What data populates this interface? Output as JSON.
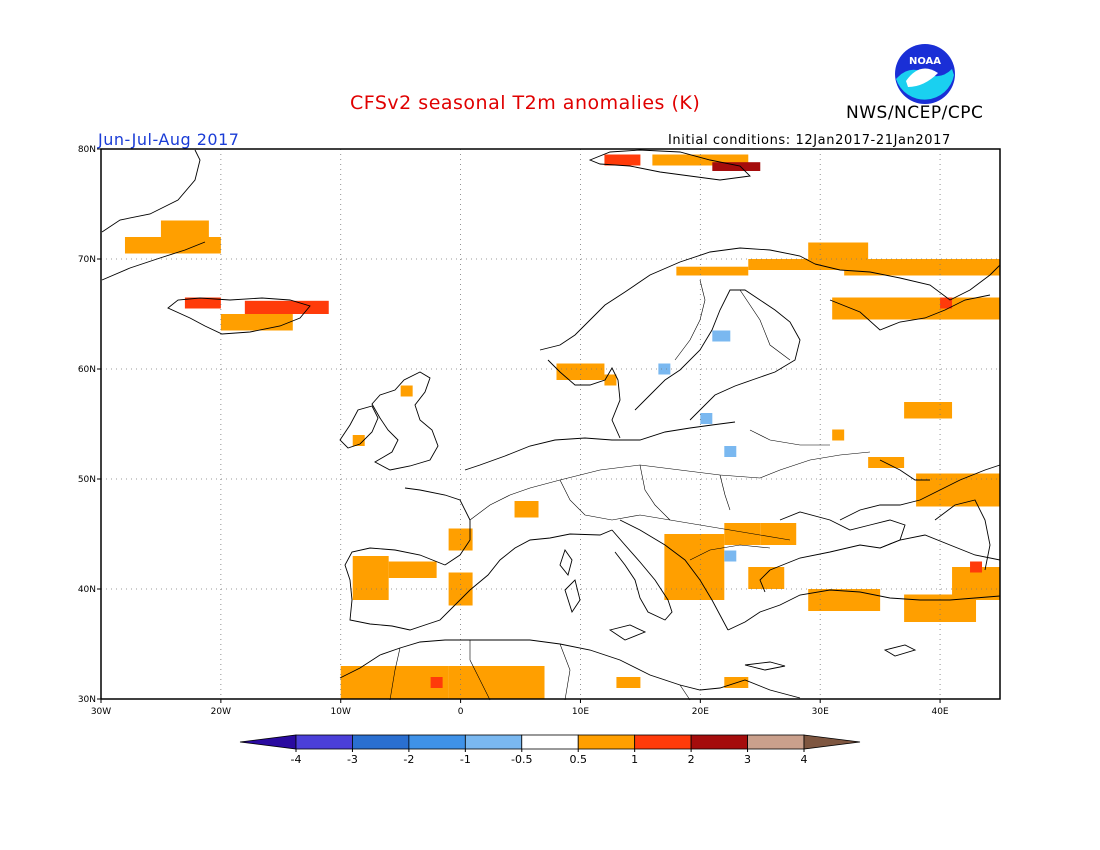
{
  "title": "CFSv2 seasonal T2m anomalies (K)",
  "org": "NWS/NCEP/CPC",
  "logo_text": "NOAA",
  "period": "Jun-Jul-Aug 2017",
  "initial_conditions": "Initial conditions: 12Jan2017-21Jan2017",
  "map": {
    "lon_range": [
      -30,
      45
    ],
    "lat_range": [
      30,
      80
    ],
    "lon_labels": [
      {
        "lon": -30,
        "label": "30W"
      },
      {
        "lon": -20,
        "label": "20W"
      },
      {
        "lon": -10,
        "label": "10W"
      },
      {
        "lon": 0,
        "label": "0"
      },
      {
        "lon": 10,
        "label": "10E"
      },
      {
        "lon": 20,
        "label": "20E"
      },
      {
        "lon": 30,
        "label": "30E"
      },
      {
        "lon": 40,
        "label": "40E"
      }
    ],
    "lat_labels": [
      {
        "lat": 30,
        "label": "30N"
      },
      {
        "lat": 40,
        "label": "40N"
      },
      {
        "lat": 50,
        "label": "50N"
      },
      {
        "lat": 60,
        "label": "60N"
      },
      {
        "lat": 70,
        "label": "70N"
      },
      {
        "lat": 80,
        "label": "80N"
      }
    ],
    "grid": true,
    "anomaly_cells": [
      {
        "lon": -28,
        "lat": 70.5,
        "w": 8,
        "h": 1.5,
        "cls": "0.5-1"
      },
      {
        "lon": -25,
        "lat": 72,
        "w": 4,
        "h": 1.5,
        "cls": "0.5-1"
      },
      {
        "lon": -23,
        "lat": 65.5,
        "w": 3,
        "h": 1,
        "cls": "1-2"
      },
      {
        "lon": -18,
        "lat": 65,
        "w": 7,
        "h": 1.2,
        "cls": "1-2"
      },
      {
        "lon": -20,
        "lat": 63.5,
        "w": 6,
        "h": 1.5,
        "cls": "0.5-1"
      },
      {
        "lon": 12,
        "lat": 78.5,
        "w": 3,
        "h": 1,
        "cls": "1-2"
      },
      {
        "lon": 16,
        "lat": 78.5,
        "w": 8,
        "h": 1,
        "cls": "0.5-1"
      },
      {
        "lon": 21,
        "lat": 78,
        "w": 4,
        "h": 0.8,
        "cls": "2-3"
      },
      {
        "lon": 18,
        "lat": 68.5,
        "w": 6,
        "h": 0.8,
        "cls": "0.5-1"
      },
      {
        "lon": 24,
        "lat": 69,
        "w": 12,
        "h": 1,
        "cls": "0.5-1"
      },
      {
        "lon": 29,
        "lat": 70,
        "w": 5,
        "h": 1.5,
        "cls": "0.5-1"
      },
      {
        "lon": 32,
        "lat": 68.5,
        "w": 13,
        "h": 1.5,
        "cls": "0.5-1"
      },
      {
        "lon": 31,
        "lat": 64.5,
        "w": 14,
        "h": 2,
        "cls": "0.5-1"
      },
      {
        "lon": 40,
        "lat": 65.5,
        "w": 1,
        "h": 1,
        "cls": "1-2"
      },
      {
        "lon": 8,
        "lat": 59,
        "w": 4,
        "h": 1.5,
        "cls": "0.5-1"
      },
      {
        "lon": 12,
        "lat": 58.5,
        "w": 1,
        "h": 1,
        "cls": "0.5-1"
      },
      {
        "lon": -5,
        "lat": 57.5,
        "w": 1,
        "h": 1,
        "cls": "0.5-1"
      },
      {
        "lon": -9,
        "lat": 53,
        "w": 1,
        "h": 1,
        "cls": "0.5-1"
      },
      {
        "lon": 37,
        "lat": 55.5,
        "w": 4,
        "h": 1.5,
        "cls": "0.5-1"
      },
      {
        "lon": 31,
        "lat": 53.5,
        "w": 1,
        "h": 1,
        "cls": "0.5-1"
      },
      {
        "lon": 34,
        "lat": 51,
        "w": 3,
        "h": 1,
        "cls": "0.5-1"
      },
      {
        "lon": 38,
        "lat": 47.5,
        "w": 7,
        "h": 3,
        "cls": "0.5-1"
      },
      {
        "lon": 4.5,
        "lat": 46.5,
        "w": 2,
        "h": 1.5,
        "cls": "0.5-1"
      },
      {
        "lon": -1,
        "lat": 43.5,
        "w": 2,
        "h": 2,
        "cls": "0.5-1"
      },
      {
        "lon": -9,
        "lat": 39,
        "w": 3,
        "h": 4,
        "cls": "0.5-1"
      },
      {
        "lon": -6,
        "lat": 41,
        "w": 4,
        "h": 1.5,
        "cls": "0.5-1"
      },
      {
        "lon": -1,
        "lat": 38.5,
        "w": 2,
        "h": 3,
        "cls": "0.5-1"
      },
      {
        "lon": 17,
        "lat": 39,
        "w": 5,
        "h": 6,
        "cls": "0.5-1"
      },
      {
        "lon": 22,
        "lat": 44,
        "w": 3,
        "h": 2,
        "cls": "0.5-1"
      },
      {
        "lon": 25,
        "lat": 44,
        "w": 3,
        "h": 2,
        "cls": "0.5-1"
      },
      {
        "lon": 24,
        "lat": 40,
        "w": 3,
        "h": 2,
        "cls": "0.5-1"
      },
      {
        "lon": 29,
        "lat": 38,
        "w": 6,
        "h": 2,
        "cls": "0.5-1"
      },
      {
        "lon": 37,
        "lat": 37,
        "w": 6,
        "h": 2.5,
        "cls": "0.5-1"
      },
      {
        "lon": 41,
        "lat": 39,
        "w": 4,
        "h": 3,
        "cls": "0.5-1"
      },
      {
        "lon": 42.5,
        "lat": 41.5,
        "w": 1,
        "h": 1,
        "cls": "1-2"
      },
      {
        "lon": -10,
        "lat": 30,
        "w": 9,
        "h": 3,
        "cls": "0.5-1"
      },
      {
        "lon": -1,
        "lat": 30,
        "w": 8,
        "h": 3,
        "cls": "0.5-1"
      },
      {
        "lon": 2,
        "lat": 31.5,
        "w": 5,
        "h": 1.5,
        "cls": "0.5-1"
      },
      {
        "lon": -2.5,
        "lat": 31,
        "w": 1,
        "h": 1,
        "cls": "1-2"
      },
      {
        "lon": 22,
        "lat": 31,
        "w": 2,
        "h": 1,
        "cls": "0.5-1"
      },
      {
        "lon": 13,
        "lat": 31,
        "w": 2,
        "h": 1,
        "cls": "0.5-1"
      },
      {
        "lon": 16.5,
        "lat": 59.5,
        "w": 1,
        "h": 1,
        "cls": "-1--0.5"
      },
      {
        "lon": 21,
        "lat": 62.5,
        "w": 1.5,
        "h": 1,
        "cls": "-1--0.5"
      },
      {
        "lon": 20,
        "lat": 55,
        "w": 1,
        "h": 1,
        "cls": "-1--0.5"
      },
      {
        "lon": 22,
        "lat": 52,
        "w": 1,
        "h": 1,
        "cls": "-1--0.5"
      },
      {
        "lon": 22,
        "lat": 42.5,
        "w": 1,
        "h": 1,
        "cls": "-1--0.5"
      }
    ]
  },
  "colorbar": {
    "labels": [
      "-4",
      "-3",
      "-2",
      "-1",
      "-0.5",
      "0.5",
      "1",
      "2",
      "3",
      "4"
    ],
    "colors": [
      "#2a0aa0",
      "#4b3fd8",
      "#2a6fd0",
      "#3f92e8",
      "#7ab8f0",
      "#ffffff",
      "#ff9f00",
      "#ff3b0a",
      "#a50c0c",
      "#caa08c",
      "#7e5640"
    ],
    "class_colors": {
      "-1--0.5": "#7ab8f0",
      "0.5-1": "#ff9f00",
      "1-2": "#ff3b0a",
      "2-3": "#a50c0c"
    }
  }
}
